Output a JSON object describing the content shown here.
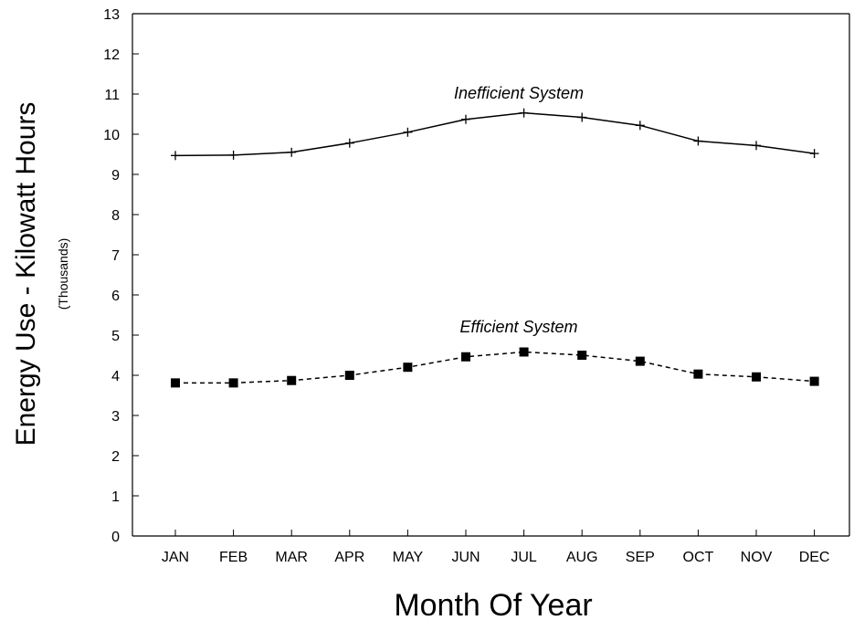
{
  "chart_data": {
    "type": "line",
    "title": "",
    "xlabel": "Month Of Year",
    "ylabel": "Energy Use - Kilowatt Hours",
    "ylabel_sub": "(Thousands)",
    "categories": [
      "JAN",
      "FEB",
      "MAR",
      "APR",
      "MAY",
      "JUN",
      "JUL",
      "AUG",
      "SEP",
      "OCT",
      "NOV",
      "DEC"
    ],
    "ylim": [
      0,
      13
    ],
    "yticks": [
      "0",
      "1",
      "2",
      "3",
      "4",
      "5",
      "6",
      "7",
      "8",
      "9",
      "10",
      "11",
      "12",
      "13"
    ],
    "grid": false,
    "series": [
      {
        "name": "Inefficient System",
        "line_style": "solid",
        "marker": "plus",
        "values": [
          9.47,
          9.48,
          9.55,
          9.78,
          10.05,
          10.37,
          10.53,
          10.42,
          10.22,
          9.83,
          9.72,
          9.52
        ]
      },
      {
        "name": "Efficient System",
        "line_style": "dashed",
        "marker": "square",
        "values": [
          3.81,
          3.81,
          3.87,
          4.0,
          4.2,
          4.46,
          4.58,
          4.5,
          4.35,
          4.03,
          3.96,
          3.85
        ]
      }
    ]
  }
}
